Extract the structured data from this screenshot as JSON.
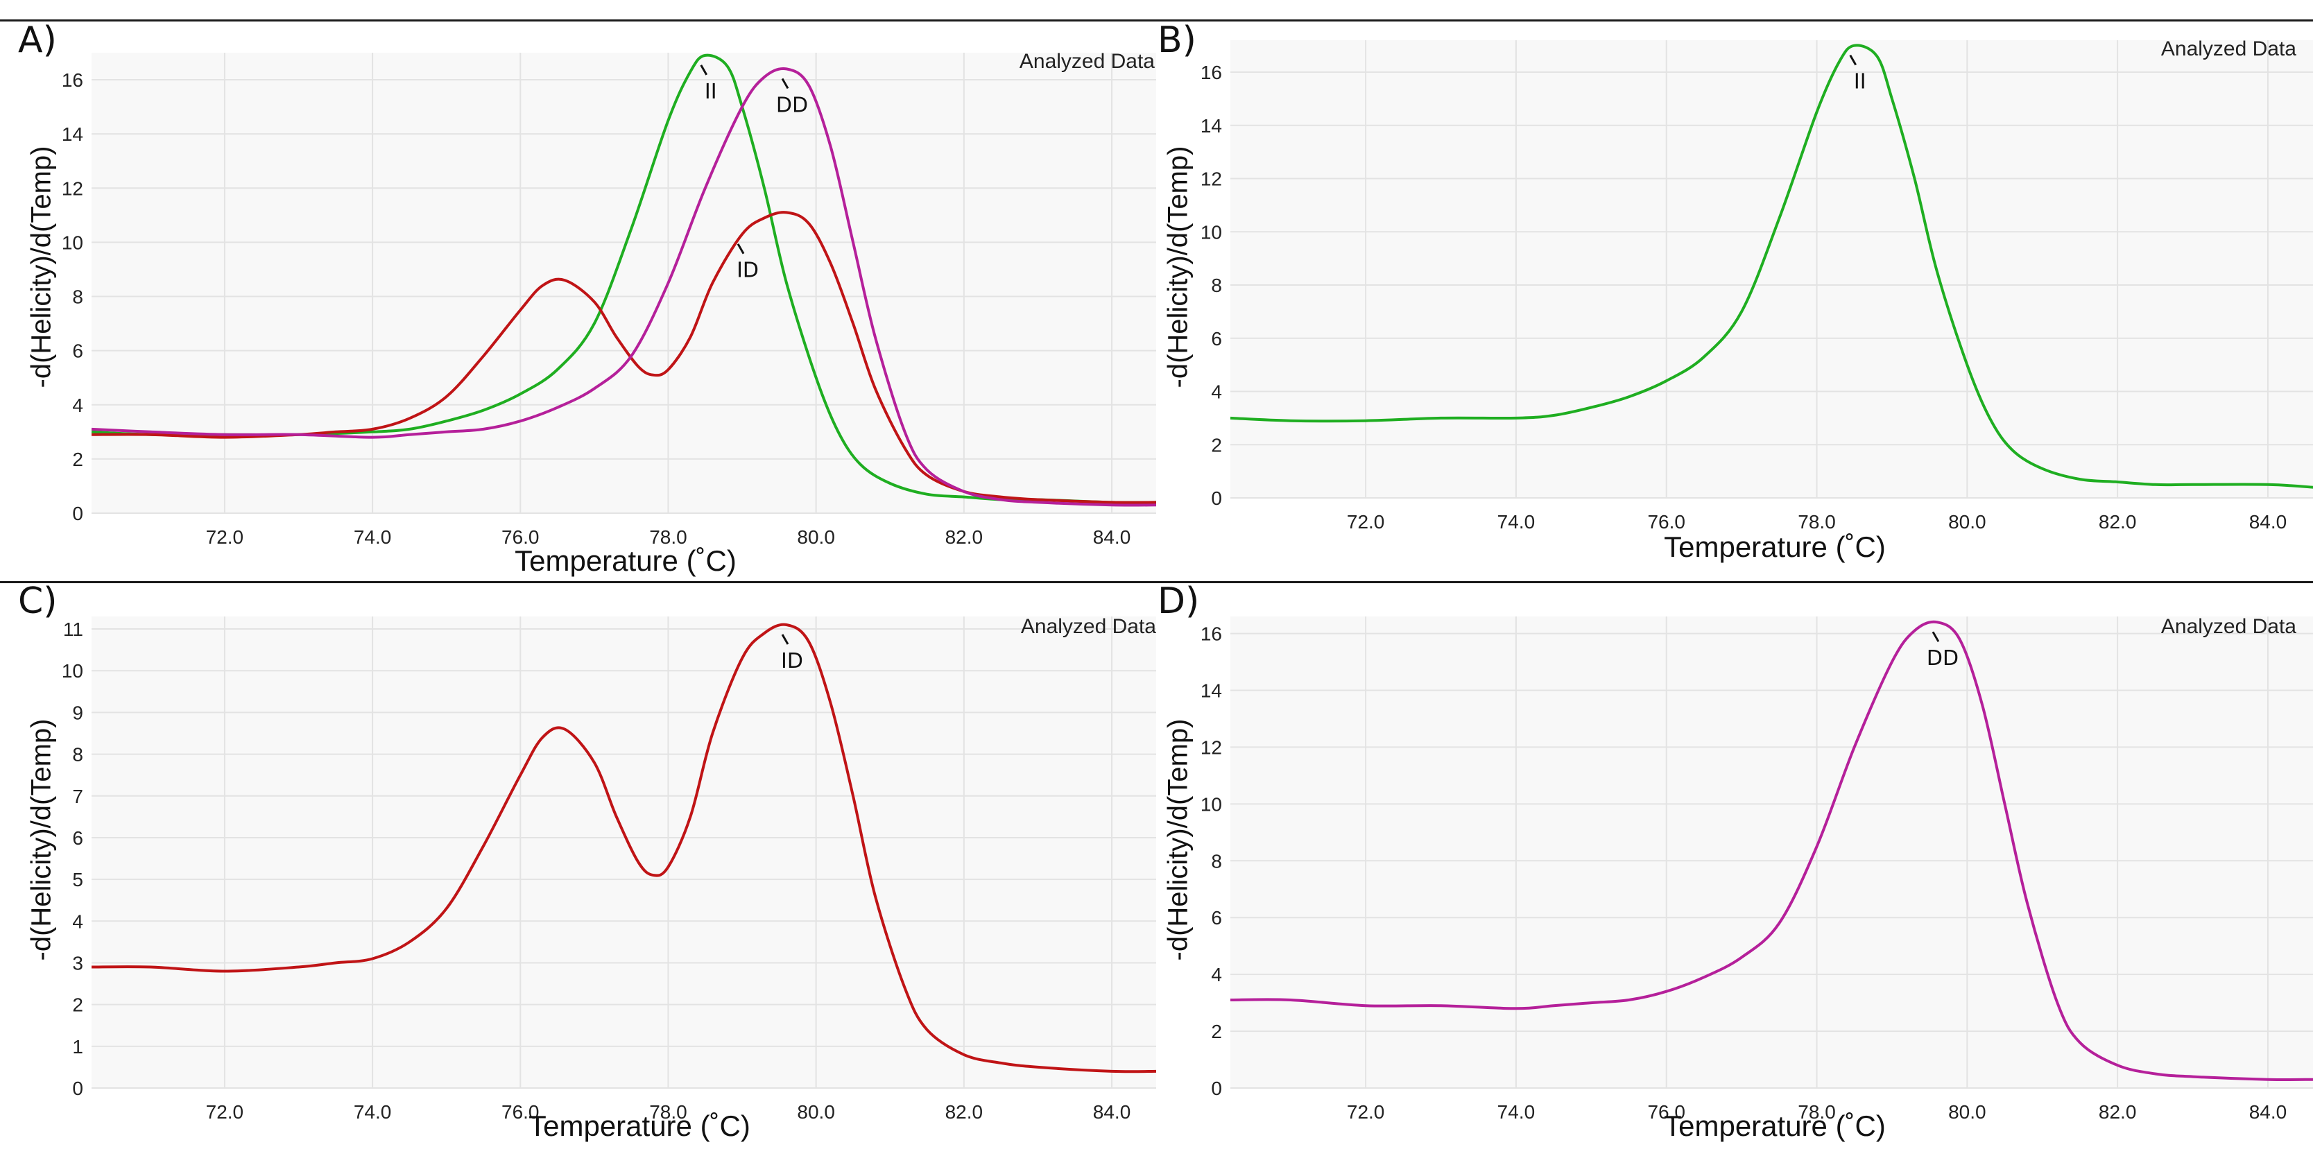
{
  "colors": {
    "II": "#1fae21",
    "ID": "#c01416",
    "DD": "#b5209a",
    "grid": "#e3e3e3",
    "plot_bg": "#f8f8f8"
  },
  "chart_data": [
    {
      "panel": "A)",
      "type": "line",
      "corner_text": "Analyzed Data",
      "title": "",
      "xlabel": "Temperature (˚C)",
      "ylabel": "-d(Helicity)/d(Temp)",
      "xlim": [
        70.2,
        84.6
      ],
      "ylim": [
        0,
        17
      ],
      "xticks": [
        72.0,
        74.0,
        76.0,
        78.0,
        80.0,
        82.0,
        84.0
      ],
      "xtick_labels": [
        "72.0",
        "74.0",
        "76.0",
        "78.0",
        "80.0",
        "82.0",
        "84.0"
      ],
      "yticks": [
        0,
        2,
        4,
        6,
        8,
        10,
        12,
        14,
        16
      ],
      "grid": true,
      "series": [
        {
          "name": "II",
          "color": "#1fae21",
          "x": [
            70.2,
            71.0,
            72.0,
            73.0,
            74.0,
            74.5,
            75.0,
            75.5,
            76.0,
            76.5,
            77.0,
            77.5,
            78.0,
            78.3,
            78.5,
            78.8,
            79.0,
            79.3,
            79.6,
            80.0,
            80.3,
            80.6,
            81.0,
            81.5,
            82.0,
            82.5,
            83.0,
            84.0,
            84.6
          ],
          "y": [
            3.0,
            2.9,
            2.9,
            2.9,
            3.0,
            3.1,
            3.4,
            3.8,
            4.4,
            5.3,
            7.0,
            10.5,
            14.5,
            16.3,
            16.9,
            16.5,
            15.0,
            12.0,
            8.5,
            5.0,
            3.0,
            1.8,
            1.1,
            0.7,
            0.6,
            0.5,
            0.5,
            0.4,
            0.4
          ]
        },
        {
          "name": "ID",
          "color": "#c01416",
          "x": [
            70.2,
            71.0,
            72.0,
            73.0,
            73.5,
            74.0,
            74.5,
            75.0,
            75.5,
            76.0,
            76.3,
            76.6,
            77.0,
            77.3,
            77.6,
            77.8,
            78.0,
            78.3,
            78.6,
            79.0,
            79.3,
            79.6,
            79.9,
            80.2,
            80.5,
            80.8,
            81.2,
            81.5,
            82.0,
            82.5,
            83.0,
            84.0,
            84.6
          ],
          "y": [
            2.9,
            2.9,
            2.8,
            2.9,
            3.0,
            3.1,
            3.5,
            4.3,
            5.8,
            7.5,
            8.4,
            8.6,
            7.8,
            6.5,
            5.4,
            5.1,
            5.3,
            6.5,
            8.5,
            10.3,
            10.9,
            11.1,
            10.7,
            9.2,
            7.0,
            4.6,
            2.4,
            1.4,
            0.8,
            0.6,
            0.5,
            0.4,
            0.4
          ]
        },
        {
          "name": "DD",
          "color": "#b5209a",
          "x": [
            70.2,
            71.0,
            72.0,
            73.0,
            74.0,
            74.5,
            75.0,
            75.5,
            76.0,
            76.5,
            77.0,
            77.5,
            78.0,
            78.5,
            79.0,
            79.3,
            79.6,
            79.9,
            80.2,
            80.5,
            80.8,
            81.2,
            81.5,
            82.0,
            82.5,
            83.0,
            84.0,
            84.6
          ],
          "y": [
            3.1,
            3.0,
            2.9,
            2.9,
            2.8,
            2.9,
            3.0,
            3.1,
            3.4,
            3.9,
            4.6,
            5.8,
            8.5,
            12.0,
            15.0,
            16.1,
            16.4,
            15.8,
            13.5,
            10.0,
            6.5,
            3.0,
            1.6,
            0.8,
            0.5,
            0.4,
            0.3,
            0.3
          ]
        }
      ],
      "annotations": [
        {
          "text": "II",
          "series": "II",
          "x": 78.5
        },
        {
          "text": "DD",
          "series": "DD",
          "x": 79.6
        },
        {
          "text": "ID",
          "series": "ID",
          "x": 79.0
        }
      ]
    },
    {
      "panel": "B)",
      "type": "line",
      "corner_text": "Analyzed Data",
      "title": "",
      "xlabel": "Temperature (˚C)",
      "ylabel": "-d(Helicity)/d(Temp)",
      "xlim": [
        70.2,
        84.6
      ],
      "ylim": [
        0,
        17.2
      ],
      "xticks": [
        72.0,
        74.0,
        76.0,
        78.0,
        80.0,
        82.0,
        84.0
      ],
      "xtick_labels": [
        "72.0",
        "74.0",
        "76.0",
        "78.0",
        "80.0",
        "82.0",
        "84.0"
      ],
      "yticks": [
        0,
        2,
        4,
        6,
        8,
        10,
        12,
        14,
        16
      ],
      "grid": true,
      "series": [
        {
          "name": "II",
          "color": "#1fae21",
          "x": [
            70.2,
            71.0,
            72.0,
            73.0,
            74.0,
            74.5,
            75.0,
            75.5,
            76.0,
            76.5,
            77.0,
            77.5,
            78.0,
            78.3,
            78.5,
            78.8,
            79.0,
            79.3,
            79.6,
            80.0,
            80.3,
            80.6,
            81.0,
            81.5,
            82.0,
            82.5,
            83.0,
            84.0,
            84.6
          ],
          "y": [
            3.0,
            2.9,
            2.9,
            3.0,
            3.0,
            3.1,
            3.4,
            3.8,
            4.4,
            5.3,
            7.0,
            10.5,
            14.5,
            16.4,
            17.0,
            16.6,
            15.0,
            12.0,
            8.5,
            5.0,
            3.0,
            1.8,
            1.1,
            0.7,
            0.6,
            0.5,
            0.5,
            0.5,
            0.4
          ]
        }
      ],
      "annotations": [
        {
          "text": "II",
          "series": "II",
          "x": 78.5
        }
      ]
    },
    {
      "panel": "C)",
      "type": "line",
      "corner_text": "Analyzed Data",
      "title": "",
      "xlabel": "Temperature (˚C)",
      "ylabel": "-d(Helicity)/d(Temp)",
      "xlim": [
        70.2,
        84.6
      ],
      "ylim": [
        0,
        11.3
      ],
      "xticks": [
        72.0,
        74.0,
        76.0,
        78.0,
        80.0,
        82.0,
        84.0
      ],
      "xtick_labels": [
        "72.0",
        "74.0",
        "76.0",
        "78.0",
        "80.0",
        "82.0",
        "84.0"
      ],
      "yticks": [
        0,
        1,
        2,
        3,
        4,
        5,
        6,
        7,
        8,
        9,
        10,
        11
      ],
      "grid": true,
      "series": [
        {
          "name": "ID",
          "color": "#c01416",
          "x": [
            70.2,
            71.0,
            72.0,
            73.0,
            73.5,
            74.0,
            74.5,
            75.0,
            75.5,
            76.0,
            76.3,
            76.6,
            77.0,
            77.3,
            77.6,
            77.8,
            78.0,
            78.3,
            78.6,
            79.0,
            79.3,
            79.6,
            79.9,
            80.2,
            80.5,
            80.8,
            81.2,
            81.5,
            82.0,
            82.5,
            83.0,
            84.0,
            84.6
          ],
          "y": [
            2.9,
            2.9,
            2.8,
            2.9,
            3.0,
            3.1,
            3.5,
            4.3,
            5.8,
            7.5,
            8.4,
            8.6,
            7.8,
            6.5,
            5.4,
            5.1,
            5.3,
            6.5,
            8.5,
            10.3,
            10.9,
            11.1,
            10.7,
            9.2,
            7.0,
            4.6,
            2.4,
            1.4,
            0.8,
            0.6,
            0.5,
            0.4,
            0.4
          ]
        }
      ],
      "annotations": [
        {
          "text": "ID",
          "series": "ID",
          "x": 79.6
        }
      ]
    },
    {
      "panel": "D)",
      "type": "line",
      "corner_text": "Analyzed Data",
      "title": "",
      "xlabel": "Temperature (˚C)",
      "ylabel": "-d(Helicity)/d(Temp)",
      "xlim": [
        70.2,
        84.6
      ],
      "ylim": [
        0,
        16.6
      ],
      "xticks": [
        72.0,
        74.0,
        76.0,
        78.0,
        80.0,
        82.0,
        84.0
      ],
      "xtick_labels": [
        "72.0",
        "74.0",
        "76.0",
        "78.0",
        "80.0",
        "82.0",
        "84.0"
      ],
      "yticks": [
        0,
        2,
        4,
        6,
        8,
        10,
        12,
        14,
        16
      ],
      "grid": true,
      "series": [
        {
          "name": "DD",
          "color": "#b5209a",
          "x": [
            70.2,
            71.0,
            72.0,
            73.0,
            74.0,
            74.5,
            75.0,
            75.5,
            76.0,
            76.5,
            77.0,
            77.5,
            78.0,
            78.5,
            79.0,
            79.3,
            79.6,
            79.9,
            80.2,
            80.5,
            80.8,
            81.2,
            81.5,
            82.0,
            82.5,
            83.0,
            84.0,
            84.6
          ],
          "y": [
            3.1,
            3.1,
            2.9,
            2.9,
            2.8,
            2.9,
            3.0,
            3.1,
            3.4,
            3.9,
            4.6,
            5.8,
            8.5,
            12.0,
            15.0,
            16.1,
            16.4,
            15.8,
            13.5,
            10.0,
            6.5,
            3.0,
            1.6,
            0.8,
            0.5,
            0.4,
            0.3,
            0.3
          ]
        }
      ],
      "annotations": [
        {
          "text": "DD",
          "series": "DD",
          "x": 79.6
        }
      ]
    }
  ]
}
